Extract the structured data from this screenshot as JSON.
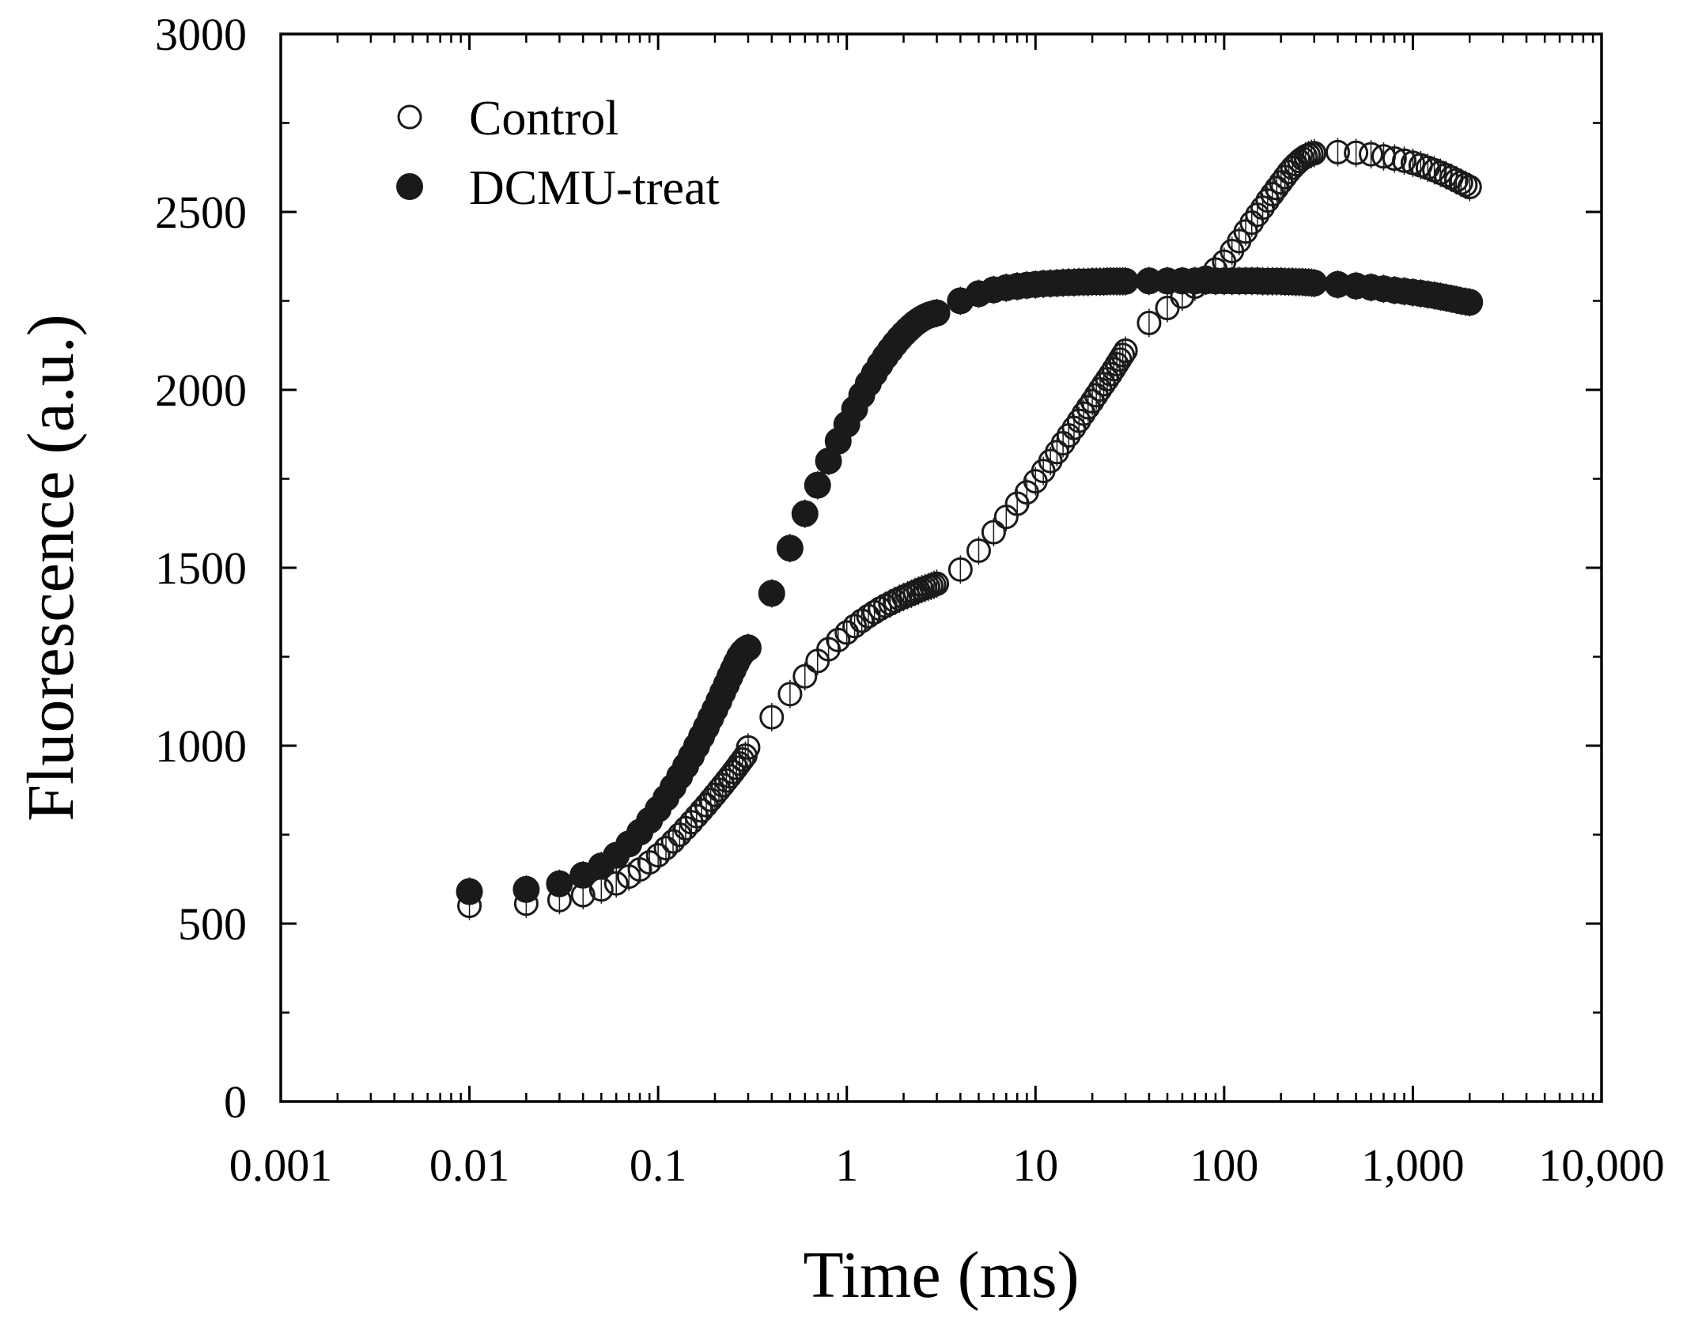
{
  "chart_data": {
    "type": "scatter",
    "title": "",
    "xlabel": "Time (ms)",
    "ylabel": "Fluorescence (a.u.)",
    "xscale": "log",
    "xlim": [
      0.001,
      10000
    ],
    "ylim": [
      0,
      3000
    ],
    "x_ticks": [
      0.001,
      0.01,
      0.1,
      1,
      10,
      100,
      1000,
      10000
    ],
    "x_tick_labels": [
      "0.001",
      "0.01",
      "0.1",
      "1",
      "10",
      "100",
      "1,000",
      "10,000"
    ],
    "y_ticks": [
      0,
      500,
      1000,
      1500,
      2000,
      2500,
      3000
    ],
    "y_tick_labels": [
      "0",
      "500",
      "1000",
      "1500",
      "2000",
      "2500",
      "3000"
    ],
    "legend_position": "top-left",
    "series": [
      {
        "name": "Control",
        "marker": "open-circle",
        "color": "#1a1a1a",
        "x": [
          0.01,
          0.02,
          0.03,
          0.04,
          0.05,
          0.06,
          0.07,
          0.08,
          0.09,
          0.1,
          0.11,
          0.12,
          0.13,
          0.14,
          0.15,
          0.16,
          0.17,
          0.18,
          0.19,
          0.2,
          0.21,
          0.22,
          0.23,
          0.24,
          0.25,
          0.26,
          0.27,
          0.28,
          0.29,
          0.3,
          0.4,
          0.5,
          0.6,
          0.7,
          0.8,
          0.9,
          1,
          1.1,
          1.2,
          1.3,
          1.4,
          1.5,
          1.6,
          1.7,
          1.8,
          1.9,
          2,
          2.1,
          2.2,
          2.3,
          2.4,
          2.5,
          2.6,
          2.7,
          2.8,
          2.9,
          3,
          4,
          5,
          6,
          7,
          8,
          9,
          10,
          11,
          12,
          13,
          14,
          15,
          16,
          17,
          18,
          19,
          20,
          21,
          22,
          23,
          24,
          25,
          26,
          27,
          28,
          29,
          30,
          40,
          50,
          60,
          70,
          80,
          90,
          100,
          110,
          120,
          130,
          140,
          150,
          160,
          170,
          180,
          190,
          200,
          210,
          220,
          230,
          240,
          250,
          260,
          270,
          280,
          290,
          300,
          400,
          500,
          600,
          700,
          800,
          900,
          1000,
          1100,
          1200,
          1300,
          1400,
          1500,
          1600,
          1700,
          1800,
          1900,
          2000
        ],
        "y": [
          550,
          556,
          566,
          580,
          596,
          613,
          632,
          652,
          672,
          692,
          712,
          731,
          750,
          768,
          785,
          802,
          818,
          833,
          848,
          862,
          876,
          889,
          902,
          914,
          926,
          938,
          950,
          961,
          972,
          995,
          1080,
          1145,
          1195,
          1238,
          1271,
          1297,
          1318,
          1336,
          1351,
          1364,
          1375,
          1385,
          1393,
          1400,
          1407,
          1413,
          1418,
          1423,
          1427,
          1432,
          1436,
          1440,
          1443,
          1446,
          1449,
          1452,
          1455,
          1495,
          1548,
          1600,
          1643,
          1680,
          1712,
          1743,
          1772,
          1800,
          1825,
          1850,
          1872,
          1893,
          1913,
          1933,
          1951,
          1968,
          1985,
          2001,
          2016,
          2030,
          2044,
          2058,
          2072,
          2085,
          2098,
          2110,
          2188,
          2230,
          2262,
          2290,
          2315,
          2338,
          2360,
          2390,
          2418,
          2445,
          2470,
          2492,
          2512,
          2532,
          2550,
          2567,
          2583,
          2598,
          2612,
          2624,
          2634,
          2643,
          2650,
          2656,
          2660,
          2663,
          2665,
          2668,
          2666,
          2662,
          2656,
          2650,
          2644,
          2638,
          2631,
          2624,
          2617,
          2610,
          2603,
          2596,
          2589,
          2582,
          2576,
          2570
        ]
      },
      {
        "name": "DCMU-treat",
        "marker": "filled-circle",
        "color": "#1a1a1a",
        "x": [
          0.01,
          0.02,
          0.03,
          0.04,
          0.05,
          0.06,
          0.07,
          0.08,
          0.09,
          0.1,
          0.11,
          0.12,
          0.13,
          0.14,
          0.15,
          0.16,
          0.17,
          0.18,
          0.19,
          0.2,
          0.21,
          0.22,
          0.23,
          0.24,
          0.25,
          0.26,
          0.27,
          0.28,
          0.29,
          0.3,
          0.4,
          0.5,
          0.6,
          0.7,
          0.8,
          0.9,
          1,
          1.1,
          1.2,
          1.3,
          1.4,
          1.5,
          1.6,
          1.7,
          1.8,
          1.9,
          2,
          2.1,
          2.2,
          2.3,
          2.4,
          2.5,
          2.6,
          2.7,
          2.8,
          2.9,
          3,
          4,
          5,
          6,
          7,
          8,
          9,
          10,
          11,
          12,
          13,
          14,
          15,
          16,
          17,
          18,
          19,
          20,
          21,
          22,
          23,
          24,
          25,
          26,
          27,
          28,
          29,
          30,
          40,
          50,
          60,
          70,
          80,
          90,
          100,
          110,
          120,
          130,
          140,
          150,
          160,
          170,
          180,
          190,
          200,
          210,
          220,
          230,
          240,
          250,
          260,
          270,
          280,
          290,
          300,
          400,
          500,
          600,
          700,
          800,
          900,
          1000,
          1100,
          1200,
          1300,
          1400,
          1500,
          1600,
          1700,
          1800,
          1900,
          2000
        ],
        "y": [
          590,
          596,
          612,
          636,
          662,
          692,
          724,
          757,
          790,
          822,
          853,
          884,
          914,
          943,
          971,
          999,
          1026,
          1052,
          1078,
          1102,
          1126,
          1150,
          1172,
          1194,
          1214,
          1233,
          1250,
          1262,
          1270,
          1275,
          1428,
          1555,
          1652,
          1732,
          1800,
          1856,
          1903,
          1946,
          1985,
          2018,
          2046,
          2071,
          2093,
          2112,
          2129,
          2144,
          2157,
          2168,
          2178,
          2187,
          2194,
          2200,
          2205,
          2209,
          2212,
          2214,
          2216,
          2250,
          2270,
          2281,
          2287,
          2291,
          2294,
          2296,
          2298,
          2299,
          2300,
          2301,
          2302,
          2302,
          2303,
          2303,
          2303,
          2304,
          2304,
          2304,
          2304,
          2305,
          2305,
          2305,
          2305,
          2305,
          2305,
          2305,
          2306,
          2306,
          2306,
          2306,
          2306,
          2306,
          2306,
          2306,
          2306,
          2306,
          2306,
          2306,
          2305,
          2305,
          2305,
          2305,
          2305,
          2304,
          2304,
          2304,
          2303,
          2303,
          2303,
          2302,
          2302,
          2301,
          2300,
          2296,
          2292,
          2288,
          2284,
          2280,
          2277,
          2274,
          2271,
          2268,
          2265,
          2262,
          2259,
          2256,
          2253,
          2250,
          2248,
          2246
        ]
      }
    ]
  }
}
